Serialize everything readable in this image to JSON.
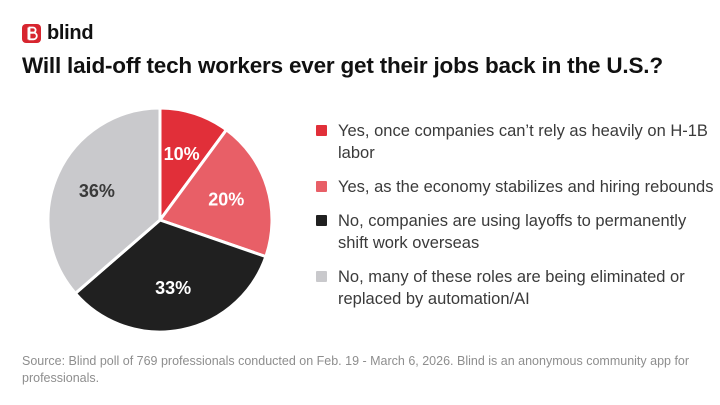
{
  "brand": {
    "name": "blind",
    "logo_icon": "blind-logo-icon"
  },
  "title": "Will laid-off tech workers ever get their jobs back in the U.S.?",
  "chart_data": {
    "type": "pie",
    "slices": [
      {
        "label": "Yes, once companies can’t rely as heavily on H-1B labor",
        "value": 10,
        "display": "10%",
        "color": "#e12f39"
      },
      {
        "label": "Yes, as the economy stabilizes and hiring rebounds",
        "value": 20,
        "display": "20%",
        "color": "#e85f67"
      },
      {
        "label": "No, companies are using layoffs to permanently shift work overseas",
        "value": 33,
        "display": "33%",
        "color": "#202020"
      },
      {
        "label": "No, many of these roles are being eliminated or replaced by automation/AI",
        "value": 36,
        "display": "36%",
        "color": "#c9c9cc"
      }
    ],
    "label_colors": [
      "#ffffff",
      "#ffffff",
      "#ffffff",
      "#3a3a3a"
    ]
  },
  "footnote": "Source: Blind poll of 769 professionals conducted on Feb. 19 - March 6, 2026. Blind is an anonymous community app for professionals."
}
